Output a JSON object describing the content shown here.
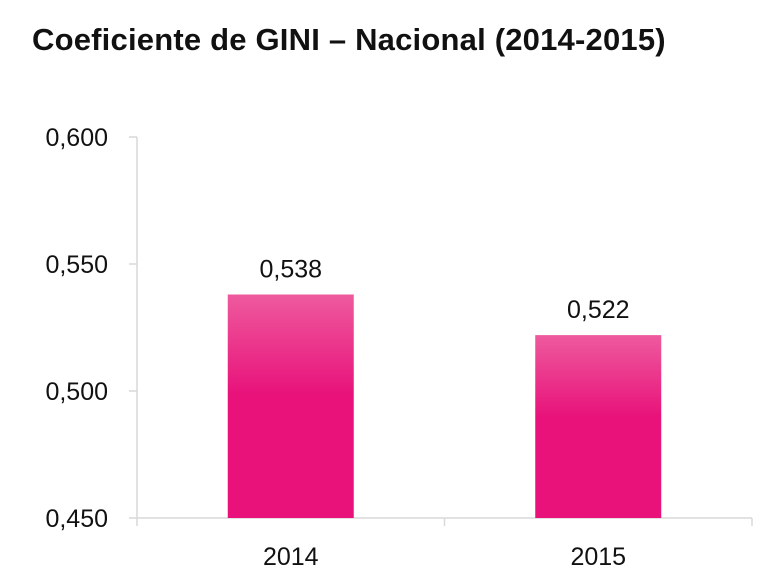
{
  "chart_data": {
    "type": "bar",
    "title": "Coeficiente de GINI – Nacional (2014-2015)",
    "categories": [
      "2014",
      "2015"
    ],
    "values": [
      0.538,
      0.522
    ],
    "data_labels": [
      "0,538",
      "0,522"
    ],
    "y_ticks": [
      0.45,
      0.5,
      0.55,
      0.6
    ],
    "y_tick_labels": [
      "0,450",
      "0,500",
      "0,550",
      "0,600"
    ],
    "ylim": [
      0.45,
      0.6
    ],
    "xlabel": "",
    "ylabel": "",
    "grid": false,
    "legend": "none",
    "bar_color": "#e8127a",
    "bar_color_top": "#ee5a9e"
  }
}
